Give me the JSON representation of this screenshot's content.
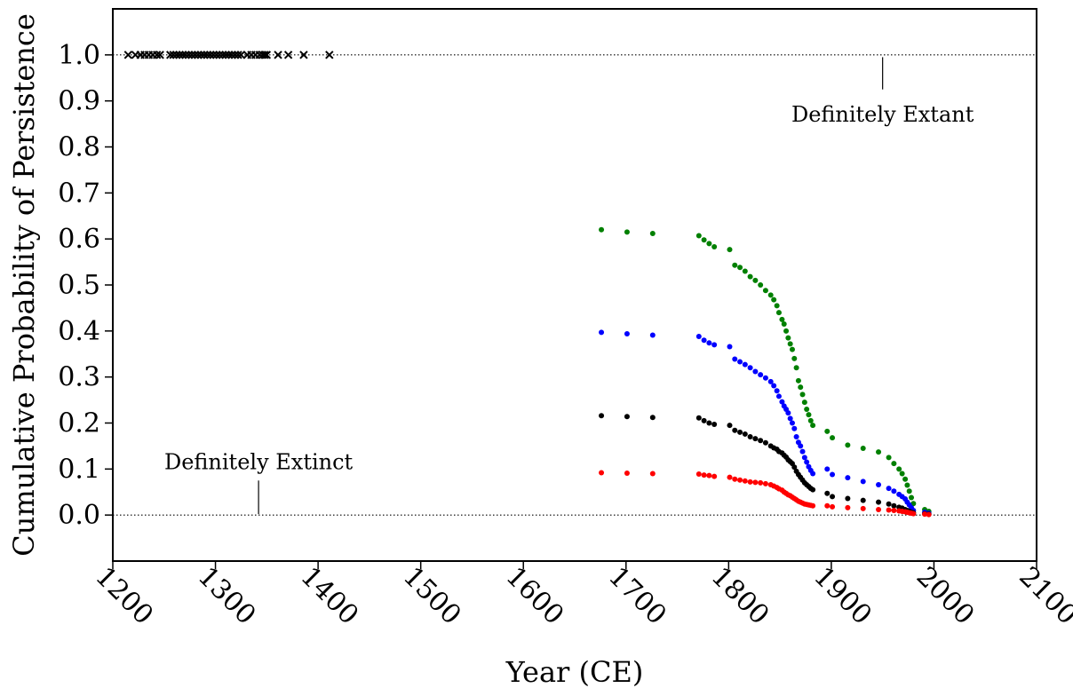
{
  "chart_data": {
    "type": "scatter",
    "xlabel": "Year (CE)",
    "ylabel": "Cumulative Probability of Persistence",
    "xlim": [
      1200,
      2100
    ],
    "ylim": [
      -0.1,
      1.1
    ],
    "x_ticks": [
      1200,
      1300,
      1400,
      1500,
      1600,
      1700,
      1800,
      1900,
      2000,
      2100
    ],
    "x_tick_labels": [
      "1200",
      "1300",
      "1400",
      "1500",
      "1600",
      "1700",
      "1800",
      "1900",
      "2000",
      "2100"
    ],
    "y_ticks": [
      0.0,
      0.1,
      0.2,
      0.3,
      0.4,
      0.5,
      0.6,
      0.7,
      0.8,
      0.9,
      1.0
    ],
    "y_tick_labels": [
      "0.0",
      "0.1",
      "0.2",
      "0.3",
      "0.4",
      "0.5",
      "0.6",
      "0.7",
      "0.8",
      "0.9",
      "1.0"
    ],
    "reference_lines": [
      {
        "y": 1.0,
        "style": "dotted"
      },
      {
        "y": 0.0,
        "style": "dotted"
      }
    ],
    "annotations": [
      {
        "text": "Definitely Extant",
        "x": 1950,
        "y": 0.87,
        "pointer_from_y": 0.995,
        "pointer_to_y": 0.925
      },
      {
        "text": "Definitely Extinct",
        "x": 1342,
        "y": 0.115,
        "pointer_from_y": 0.075,
        "pointer_to_y": 0.002
      }
    ],
    "grid": false,
    "legend": "none",
    "series": [
      {
        "marker": "x",
        "color": "#000000",
        "x": [
          1215,
          1222,
          1227,
          1231,
          1235,
          1239,
          1243,
          1246,
          1256,
          1259,
          1262,
          1265,
          1268,
          1271,
          1274,
          1277,
          1280,
          1283,
          1286,
          1289,
          1292,
          1295,
          1298,
          1301,
          1304,
          1307,
          1310,
          1313,
          1316,
          1319,
          1322,
          1325,
          1331,
          1335,
          1339,
          1343,
          1346,
          1348,
          1350,
          1361,
          1371,
          1386,
          1411
        ],
        "y": [
          1.0,
          1.0,
          1.0,
          1.0,
          1.0,
          1.0,
          1.0,
          1.0,
          1.0,
          1.0,
          1.0,
          1.0,
          1.0,
          1.0,
          1.0,
          1.0,
          1.0,
          1.0,
          1.0,
          1.0,
          1.0,
          1.0,
          1.0,
          1.0,
          1.0,
          1.0,
          1.0,
          1.0,
          1.0,
          1.0,
          1.0,
          1.0,
          1.0,
          1.0,
          1.0,
          1.0,
          1.0,
          1.0,
          1.0,
          1.0,
          1.0,
          1.0,
          1.0
        ]
      },
      {
        "marker": "dot",
        "color": "#008000",
        "x": [
          1676,
          1701,
          1726,
          1771,
          1776,
          1781,
          1786,
          1801,
          1806,
          1811,
          1816,
          1821,
          1826,
          1831,
          1836,
          1841,
          1844,
          1847,
          1849,
          1852,
          1854,
          1856,
          1858,
          1860,
          1862,
          1864,
          1866,
          1868,
          1870,
          1872,
          1874,
          1876,
          1878,
          1880,
          1882,
          1896,
          1901,
          1916,
          1931,
          1946,
          1956,
          1961,
          1966,
          1969,
          1972,
          1974,
          1976,
          1978,
          1980,
          1991,
          1995
        ],
        "y": [
          0.62,
          0.615,
          0.612,
          0.607,
          0.598,
          0.59,
          0.583,
          0.577,
          0.543,
          0.538,
          0.53,
          0.518,
          0.51,
          0.5,
          0.488,
          0.478,
          0.468,
          0.455,
          0.44,
          0.425,
          0.415,
          0.4,
          0.385,
          0.372,
          0.36,
          0.34,
          0.32,
          0.292,
          0.278,
          0.262,
          0.245,
          0.23,
          0.218,
          0.205,
          0.195,
          0.182,
          0.168,
          0.152,
          0.145,
          0.137,
          0.125,
          0.112,
          0.1,
          0.09,
          0.078,
          0.065,
          0.052,
          0.038,
          0.025,
          0.012,
          0.008
        ]
      },
      {
        "marker": "dot",
        "color": "#0000ff",
        "x": [
          1676,
          1701,
          1726,
          1771,
          1776,
          1781,
          1786,
          1801,
          1806,
          1811,
          1816,
          1821,
          1826,
          1831,
          1836,
          1841,
          1844,
          1847,
          1849,
          1852,
          1854,
          1856,
          1858,
          1860,
          1862,
          1864,
          1866,
          1868,
          1870,
          1872,
          1874,
          1876,
          1878,
          1880,
          1882,
          1896,
          1901,
          1916,
          1931,
          1946,
          1956,
          1961,
          1966,
          1969,
          1972,
          1974,
          1976,
          1978,
          1980,
          1991,
          1995
        ],
        "y": [
          0.397,
          0.394,
          0.391,
          0.388,
          0.38,
          0.374,
          0.37,
          0.366,
          0.339,
          0.333,
          0.327,
          0.32,
          0.312,
          0.305,
          0.298,
          0.29,
          0.281,
          0.27,
          0.258,
          0.246,
          0.237,
          0.23,
          0.222,
          0.21,
          0.2,
          0.188,
          0.17,
          0.158,
          0.15,
          0.138,
          0.125,
          0.115,
          0.105,
          0.097,
          0.09,
          0.1,
          0.088,
          0.081,
          0.073,
          0.066,
          0.058,
          0.052,
          0.045,
          0.04,
          0.035,
          0.028,
          0.022,
          0.016,
          0.01,
          0.006,
          0.004
        ]
      },
      {
        "marker": "dot",
        "color": "#000000",
        "x": [
          1676,
          1701,
          1726,
          1771,
          1776,
          1781,
          1786,
          1801,
          1806,
          1811,
          1816,
          1821,
          1826,
          1831,
          1836,
          1841,
          1844,
          1847,
          1849,
          1852,
          1854,
          1856,
          1858,
          1860,
          1862,
          1864,
          1866,
          1868,
          1870,
          1872,
          1874,
          1876,
          1878,
          1880,
          1882,
          1896,
          1901,
          1916,
          1931,
          1946,
          1956,
          1961,
          1966,
          1969,
          1972,
          1974,
          1976,
          1978,
          1980,
          1991,
          1995
        ],
        "y": [
          0.216,
          0.214,
          0.212,
          0.211,
          0.205,
          0.2,
          0.197,
          0.195,
          0.184,
          0.18,
          0.176,
          0.17,
          0.166,
          0.162,
          0.157,
          0.15,
          0.146,
          0.143,
          0.138,
          0.135,
          0.13,
          0.126,
          0.12,
          0.116,
          0.112,
          0.104,
          0.095,
          0.088,
          0.082,
          0.076,
          0.07,
          0.066,
          0.062,
          0.058,
          0.055,
          0.047,
          0.04,
          0.036,
          0.032,
          0.028,
          0.024,
          0.02,
          0.017,
          0.015,
          0.012,
          0.01,
          0.008,
          0.006,
          0.005,
          0.003,
          0.002
        ]
      },
      {
        "marker": "dot",
        "color": "#ff0000",
        "x": [
          1676,
          1701,
          1726,
          1771,
          1776,
          1781,
          1786,
          1801,
          1806,
          1811,
          1816,
          1821,
          1826,
          1831,
          1836,
          1841,
          1844,
          1847,
          1849,
          1852,
          1854,
          1856,
          1858,
          1860,
          1862,
          1864,
          1866,
          1868,
          1870,
          1872,
          1874,
          1876,
          1878,
          1880,
          1882,
          1896,
          1901,
          1916,
          1931,
          1946,
          1956,
          1961,
          1966,
          1969,
          1972,
          1974,
          1976,
          1978,
          1980,
          1991,
          1995
        ],
        "y": [
          0.092,
          0.091,
          0.09,
          0.089,
          0.087,
          0.086,
          0.084,
          0.082,
          0.078,
          0.076,
          0.074,
          0.072,
          0.071,
          0.07,
          0.068,
          0.066,
          0.063,
          0.06,
          0.057,
          0.054,
          0.05,
          0.047,
          0.044,
          0.042,
          0.039,
          0.036,
          0.033,
          0.03,
          0.028,
          0.026,
          0.024,
          0.023,
          0.022,
          0.021,
          0.02,
          0.02,
          0.018,
          0.016,
          0.014,
          0.012,
          0.011,
          0.01,
          0.009,
          0.008,
          0.007,
          0.006,
          0.005,
          0.004,
          0.003,
          0.002,
          0.001
        ]
      }
    ]
  }
}
